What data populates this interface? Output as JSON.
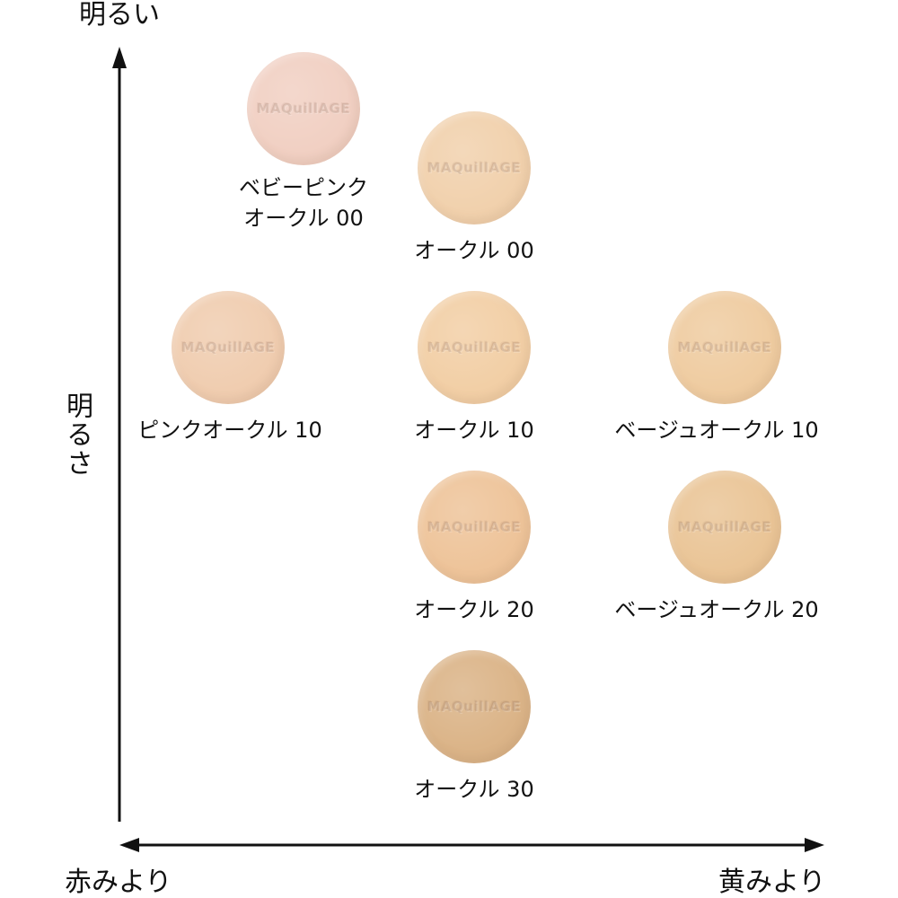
{
  "axes": {
    "top": "明るい",
    "side": "明るさ",
    "left": "赤みより",
    "right": "黄みより"
  },
  "swatches": [
    {
      "label": "ベビーピンク\nオークル 00",
      "logo": "MAQuillAGE",
      "color": "#f1d0c3"
    },
    {
      "label": "オークル 00",
      "logo": "MAQuillAGE",
      "color": "#f1d1ad"
    },
    {
      "label": "ピンクオークル 10",
      "logo": "MAQuillAGE",
      "color": "#f0cdb0"
    },
    {
      "label": "オークル 10",
      "logo": "MAQuillAGE",
      "color": "#f2cfa6"
    },
    {
      "label": "ベージュオークル 10",
      "logo": "MAQuillAGE",
      "color": "#efcca1"
    },
    {
      "label": "オークル 20",
      "logo": "MAQuillAGE",
      "color": "#eec49a"
    },
    {
      "label": "ベージュオークル 20",
      "logo": "MAQuillAGE",
      "color": "#eac597"
    },
    {
      "label": "オークル 30",
      "logo": "MAQuillAGE",
      "color": "#dbb488"
    }
  ]
}
